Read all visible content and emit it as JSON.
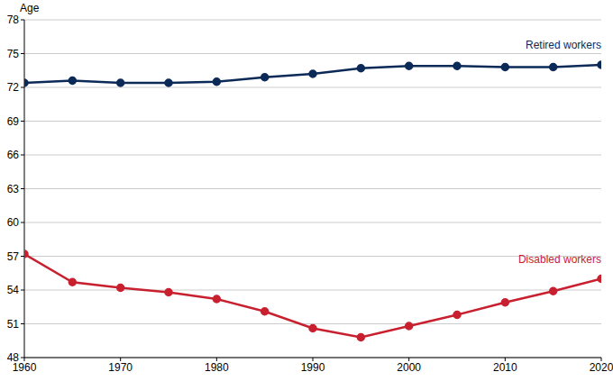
{
  "chart_data": {
    "type": "line",
    "y_label": "Age",
    "x": [
      1960,
      1965,
      1970,
      1975,
      1980,
      1985,
      1990,
      1995,
      2000,
      2005,
      2010,
      2015,
      2020
    ],
    "xlim": [
      1960,
      2020
    ],
    "xticks": [
      1960,
      1970,
      1980,
      1990,
      2000,
      2010,
      2020
    ],
    "ylim": [
      48,
      78
    ],
    "yticks": [
      48,
      51,
      54,
      57,
      60,
      63,
      66,
      69,
      72,
      75,
      78
    ],
    "grid": true,
    "series": [
      {
        "name": "Retired workers",
        "color": "#0b2a58",
        "marker": "circle",
        "values": [
          72.4,
          72.6,
          72.4,
          72.4,
          72.5,
          72.9,
          73.2,
          73.7,
          73.9,
          73.9,
          73.8,
          73.8,
          74.0
        ]
      },
      {
        "name": "Disabled workers",
        "color": "#c8202f",
        "marker": "circle",
        "values": [
          57.2,
          54.7,
          54.2,
          53.8,
          53.2,
          52.1,
          50.6,
          49.8,
          50.8,
          51.8,
          52.9,
          53.9,
          55.0
        ]
      }
    ]
  }
}
